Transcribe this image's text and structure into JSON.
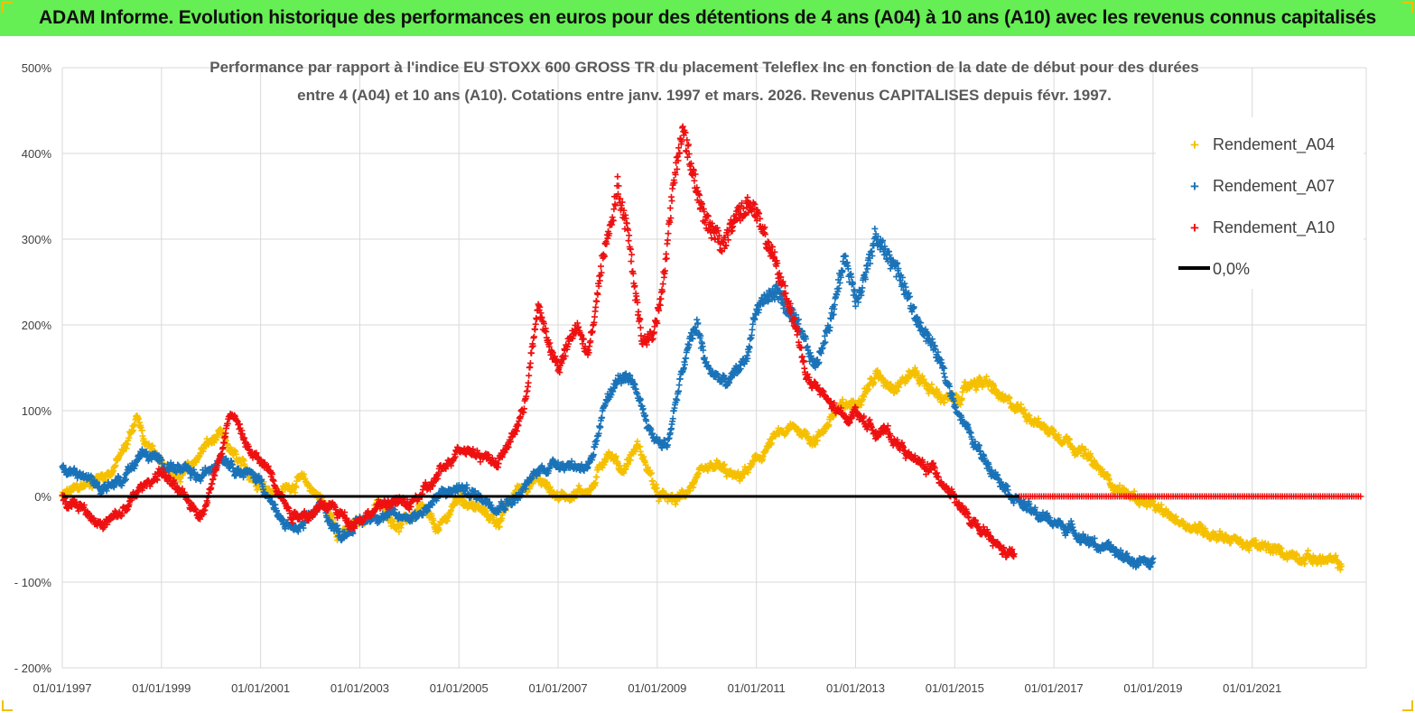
{
  "header": {
    "title": "ADAM Informe. Evolution historique des performances en euros pour des détentions de 4 ans (A04) à 10 ans (A10) avec les revenus connus capitalisés"
  },
  "colors": {
    "banner": "#66ee55",
    "a04": "#f5c000",
    "a07": "#1a73b8",
    "a10": "#ee1111",
    "zero": "#000000",
    "grid": "#d9d9d9"
  },
  "chart_data": {
    "type": "scatter",
    "title_lines": [
      "Performance par rapport à l'indice EU STOXX 600 GROSS TR  du placement Teleflex Inc en fonction de la date de début pour des durées",
      "entre 4 (A04) et 10 ans (A10).  Cotations entre janv. 1997 et mars. 2026. Revenus CAPITALISES depuis févr. 1997."
    ],
    "x_ticks": [
      "01/01/1997",
      "01/01/1999",
      "01/01/2001",
      "01/01/2003",
      "01/01/2005",
      "01/01/2007",
      "01/01/2009",
      "01/01/2011",
      "01/01/2013",
      "01/01/2015",
      "01/01/2017",
      "01/01/2019",
      "01/01/2021"
    ],
    "x_range": [
      1997.0,
      2023.3
    ],
    "y_ticks": [
      "500%",
      "400%",
      "300%",
      "200%",
      "100%",
      "0%",
      "- 100%",
      "- 200%"
    ],
    "y_tick_values": [
      500,
      400,
      300,
      200,
      100,
      0,
      -100,
      -200
    ],
    "y_range": [
      -200,
      500
    ],
    "legend_position": "top-right",
    "legend": [
      "Rendement_A04",
      "Rendement_A07",
      "Rendement_A10",
      "0,0%"
    ],
    "series": [
      {
        "name": "Rendement_A04",
        "x": [
          1997.0,
          1997.5,
          1998.0,
          1998.3,
          1998.5,
          1998.7,
          1999.0,
          1999.3,
          1999.6,
          1999.9,
          2000.2,
          2000.6,
          2001.0,
          2001.4,
          2001.8,
          2002.2,
          2002.6,
          2003.0,
          2003.4,
          2003.8,
          2004.2,
          2004.6,
          2005.0,
          2005.4,
          2005.8,
          2006.2,
          2006.6,
          2007.0,
          2007.4,
          2007.7,
          2008.0,
          2008.3,
          2008.6,
          2008.9,
          2009.0,
          2009.4,
          2009.8,
          2010.2,
          2010.6,
          2011.0,
          2011.4,
          2011.8,
          2012.2,
          2012.6,
          2013.0,
          2013.4,
          2013.8,
          2014.2,
          2014.6,
          2015.0,
          2015.4,
          2015.7,
          2016.0,
          2016.4,
          2016.8,
          2017.2,
          2017.6,
          2018.0,
          2018.4,
          2018.8,
          2019.2,
          2019.6,
          2020.0,
          2020.4,
          2020.8,
          2021.2,
          2021.6,
          2022.0,
          2022.5,
          2022.8
        ],
        "y": [
          0,
          15,
          30,
          60,
          95,
          55,
          45,
          20,
          35,
          60,
          70,
          35,
          15,
          5,
          20,
          0,
          -45,
          -30,
          -10,
          -35,
          -15,
          -40,
          0,
          -15,
          -30,
          10,
          20,
          0,
          5,
          10,
          55,
          30,
          60,
          20,
          0,
          -5,
          20,
          35,
          20,
          40,
          70,
          80,
          65,
          100,
          110,
          140,
          130,
          145,
          120,
          110,
          135,
          130,
          110,
          100,
          80,
          70,
          50,
          25,
          5,
          -5,
          -20,
          -30,
          -40,
          -45,
          -55,
          -60,
          -65,
          -70,
          -75,
          -80
        ]
      },
      {
        "name": "Rendement_A07",
        "x": [
          1997.0,
          1997.4,
          1997.8,
          1998.2,
          1998.6,
          1999.0,
          1999.4,
          1999.8,
          2000.2,
          2000.6,
          2001.0,
          2001.4,
          2001.8,
          2002.2,
          2002.6,
          2003.0,
          2003.4,
          2003.8,
          2004.2,
          2004.6,
          2005.0,
          2005.4,
          2005.8,
          2006.2,
          2006.6,
          2007.0,
          2007.4,
          2007.7,
          2008.0,
          2008.3,
          2008.6,
          2008.9,
          2009.2,
          2009.6,
          2009.8,
          2010.0,
          2010.4,
          2010.8,
          2011.0,
          2011.4,
          2011.8,
          2012.2,
          2012.5,
          2012.8,
          2013.0,
          2013.2,
          2013.4,
          2013.8,
          2014.2,
          2014.6,
          2015.0,
          2015.4,
          2015.8,
          2016.2,
          2016.6,
          2017.0,
          2017.4,
          2017.8,
          2018.2,
          2018.6,
          2019.0
        ],
        "y": [
          30,
          25,
          10,
          20,
          50,
          40,
          30,
          20,
          50,
          30,
          20,
          -30,
          -40,
          -10,
          -45,
          -30,
          -20,
          -25,
          -20,
          0,
          10,
          0,
          -10,
          0,
          30,
          40,
          35,
          40,
          120,
          140,
          120,
          70,
          60,
          170,
          200,
          150,
          130,
          160,
          220,
          240,
          200,
          150,
          210,
          280,
          230,
          260,
          300,
          270,
          210,
          170,
          110,
          60,
          30,
          0,
          -20,
          -30,
          -40,
          -55,
          -65,
          -75,
          -80
        ]
      },
      {
        "name": "Rendement_A10",
        "x": [
          1997.0,
          1997.4,
          1997.8,
          1998.2,
          1998.6,
          1999.0,
          1999.4,
          1999.8,
          2000.0,
          2000.4,
          2000.8,
          2001.2,
          2001.6,
          2002.0,
          2002.4,
          2002.8,
          2003.2,
          2003.6,
          2004.0,
          2004.4,
          2004.8,
          2005.0,
          2005.4,
          2005.8,
          2006.0,
          2006.3,
          2006.6,
          2006.8,
          2007.0,
          2007.4,
          2007.6,
          2007.9,
          2008.2,
          2008.4,
          2008.7,
          2008.9,
          2009.1,
          2009.3,
          2009.5,
          2009.8,
          2010.0,
          2010.3,
          2010.6,
          2010.9,
          2011.2,
          2011.5,
          2011.8,
          2012.0,
          2012.3,
          2012.6,
          2012.8,
          2013.0,
          2013.3,
          2013.6,
          2013.9,
          2014.2,
          2014.6,
          2015.0,
          2015.3,
          2015.7,
          2016.0,
          2016.2
        ],
        "y": [
          0,
          -10,
          -35,
          -20,
          10,
          30,
          0,
          -20,
          10,
          100,
          50,
          30,
          -20,
          -20,
          -10,
          -30,
          -20,
          -5,
          -10,
          10,
          40,
          60,
          50,
          40,
          60,
          100,
          220,
          180,
          150,
          200,
          160,
          280,
          360,
          310,
          180,
          190,
          240,
          350,
          430,
          360,
          320,
          290,
          330,
          340,
          300,
          250,
          200,
          140,
          120,
          100,
          90,
          100,
          80,
          75,
          60,
          40,
          30,
          0,
          -30,
          -50,
          -65,
          -70
        ]
      }
    ]
  }
}
